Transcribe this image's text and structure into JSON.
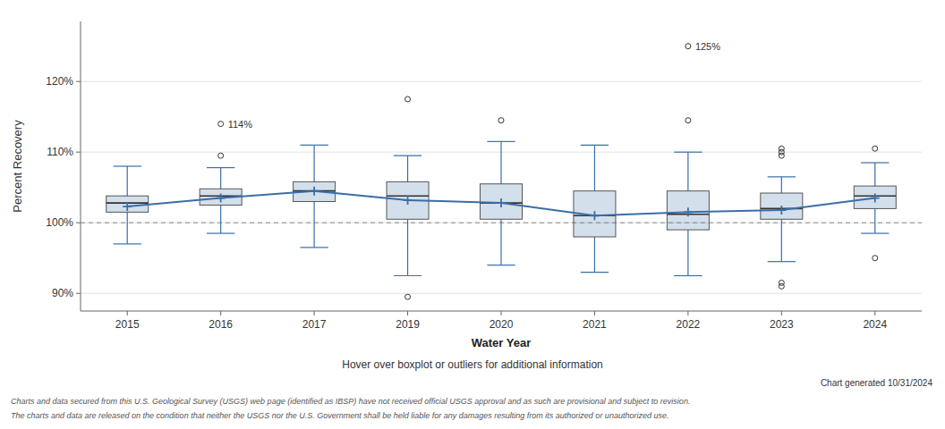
{
  "chart_data": {
    "type": "box",
    "x_label": "Water Year",
    "y_label": "Percent Recovery",
    "categories": [
      "2015",
      "2016",
      "2017",
      "2019",
      "2020",
      "2021",
      "2022",
      "2023",
      "2024"
    ],
    "q1": [
      101.5,
      102.5,
      103.0,
      100.5,
      100.5,
      98.0,
      99.0,
      100.5,
      102.0
    ],
    "median": [
      102.8,
      103.8,
      104.5,
      103.8,
      102.8,
      101.0,
      101.2,
      102.0,
      103.8
    ],
    "q3": [
      103.8,
      104.8,
      105.8,
      105.8,
      105.5,
      104.5,
      104.5,
      104.2,
      105.2
    ],
    "mean": [
      102.3,
      103.5,
      104.5,
      103.2,
      102.8,
      101.0,
      101.5,
      101.8,
      103.5
    ],
    "whisker_low": [
      97.0,
      98.5,
      96.5,
      92.5,
      94.0,
      93.0,
      92.5,
      94.5,
      98.5
    ],
    "whisker_high": [
      108.0,
      107.8,
      111.0,
      109.5,
      111.5,
      111.0,
      110.0,
      106.5,
      108.5
    ],
    "outliers": [
      [],
      [
        109.5
      ],
      [],
      [
        89.5,
        117.5
      ],
      [
        114.5
      ],
      [],
      [
        114.5
      ],
      [
        91.0,
        91.5,
        109.5,
        110.0,
        110.5
      ],
      [
        95.0,
        110.5
      ]
    ],
    "labeled_outliers": [
      {
        "category": "2016",
        "value": 114.0,
        "label": "114%"
      },
      {
        "category": "2022",
        "value": 125.0,
        "label": "125%"
      }
    ],
    "reference_line": 100,
    "color": "#3a6ea8",
    "ylim": [
      87.5,
      128.5
    ],
    "yticks": [
      {
        "value": 90,
        "label": "90%"
      },
      {
        "value": 100,
        "label": "100%"
      },
      {
        "value": 110,
        "label": "110%"
      },
      {
        "value": 120,
        "label": "120%"
      }
    ],
    "grid": true,
    "annotations": [
      "Hover over boxplot or outliers for additional information",
      "Chart generated 10/31/2024"
    ],
    "notes": [
      "Charts and data secured from this U.S. Geological Survey (USGS) web page (identified as IBSP) have not received official USGS approval and as such are provisional and subject to revision.",
      "The charts and data are released on the condition that neither the USGS nor the U.S. Government shall be held liable for any damages resulting from its authorized or unauthorized use."
    ]
  }
}
